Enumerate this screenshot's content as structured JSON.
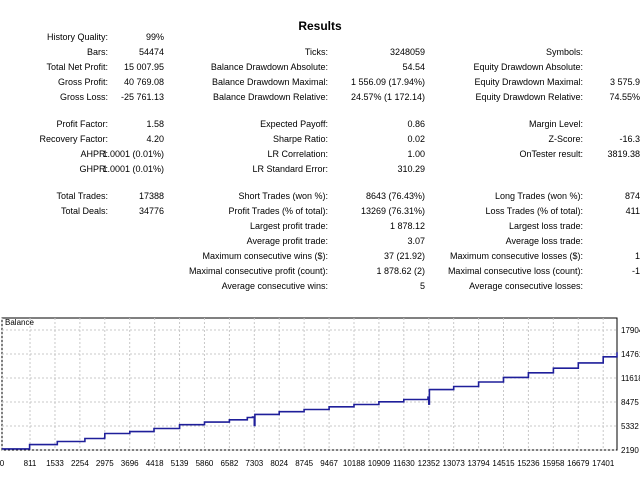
{
  "report": {
    "title": "Results",
    "col1": [
      {
        "label": "History Quality:",
        "value": "99%"
      },
      {
        "label": "Bars:",
        "value": "54474"
      },
      {
        "label": "Total Net Profit:",
        "value": "15 007.95"
      },
      {
        "label": "Gross Profit:",
        "value": "40 769.08"
      },
      {
        "label": "Gross Loss:",
        "value": "-25 761.13"
      },
      {
        "label": "Profit Factor:",
        "value": "1.58"
      },
      {
        "label": "Recovery Factor:",
        "value": "4.20"
      },
      {
        "label": "AHPR:",
        "value": "1.0001 (0.01%)"
      },
      {
        "label": "GHPR:",
        "value": "1.0001 (0.01%)"
      },
      {
        "label": "Total Trades:",
        "value": "17388"
      },
      {
        "label": "Total Deals:",
        "value": "34776"
      }
    ],
    "col2": [
      {
        "label": "Ticks:",
        "value": "3248059"
      },
      {
        "label": "Balance Drawdown Absolute:",
        "value": "54.54"
      },
      {
        "label": "Balance Drawdown Maximal:",
        "value": "1 556.09 (17.94%)"
      },
      {
        "label": "Balance Drawdown Relative:",
        "value": "24.57% (1 172.14)"
      },
      {
        "label": "Expected Payoff:",
        "value": "0.86"
      },
      {
        "label": "Sharpe Ratio:",
        "value": "0.02"
      },
      {
        "label": "LR Correlation:",
        "value": "1.00"
      },
      {
        "label": "LR Standard Error:",
        "value": "310.29"
      },
      {
        "label": "Short Trades (won %):",
        "value": "8643 (76.43%)"
      },
      {
        "label": "Profit Trades (% of total):",
        "value": "13269 (76.31%)"
      },
      {
        "label": "Largest profit trade:",
        "value": "1 878.12"
      },
      {
        "label": "Average profit trade:",
        "value": "3.07"
      },
      {
        "label": "Maximum consecutive wins ($):",
        "value": "37 (21.92)"
      },
      {
        "label": "Maximal consecutive profit (count):",
        "value": "1 878.62 (2)"
      },
      {
        "label": "Average consecutive wins:",
        "value": "5"
      }
    ],
    "col3": [
      {
        "label": "Symbols:",
        "value": ""
      },
      {
        "label": "Equity Drawdown Absolute:",
        "value": ""
      },
      {
        "label": "Equity Drawdown Maximal:",
        "value": "3 575.9"
      },
      {
        "label": "Equity Drawdown Relative:",
        "value": "74.55%"
      },
      {
        "label": "Margin Level:",
        "value": ""
      },
      {
        "label": "Z-Score:",
        "value": "-16.3"
      },
      {
        "label": "OnTester result:",
        "value": "3819.38"
      },
      {
        "label": "Long Trades (won %):",
        "value": "874"
      },
      {
        "label": "Loss Trades (% of total):",
        "value": "411"
      },
      {
        "label": "Largest loss trade:",
        "value": ""
      },
      {
        "label": "Average loss trade:",
        "value": ""
      },
      {
        "label": "Maximum consecutive losses ($):",
        "value": "1"
      },
      {
        "label": "Maximal consecutive loss (count):",
        "value": "-1"
      },
      {
        "label": "Average consecutive losses:",
        "value": ""
      }
    ]
  },
  "colors": {
    "line": "#1f1f9a",
    "grid": "#c8c8c8",
    "frame": "#000000"
  },
  "chart_data": {
    "type": "line",
    "title": "Balance",
    "xlabel": "",
    "ylabel": "",
    "x_ticks": [
      "0",
      "811",
      "1533",
      "2254",
      "2975",
      "3696",
      "4418",
      "5139",
      "5860",
      "6582",
      "7303",
      "8024",
      "8745",
      "9467",
      "10188",
      "10909",
      "11630",
      "12352",
      "13073",
      "13794",
      "14515",
      "15236",
      "15958",
      "16679",
      "17401"
    ],
    "y_ticks": [
      "17904",
      "14761",
      "11618",
      "8475",
      "5332",
      "2190"
    ],
    "xlim": [
      0,
      17800
    ],
    "ylim": [
      2190,
      17904
    ],
    "grid": true,
    "series": [
      {
        "values": [
          [
            0,
            2330
          ],
          [
            800,
            2900
          ],
          [
            1600,
            3300
          ],
          [
            2400,
            3700
          ],
          [
            2970,
            3800
          ],
          [
            2975,
            4350
          ],
          [
            3700,
            4600
          ],
          [
            4400,
            5000
          ],
          [
            5140,
            5500
          ],
          [
            5860,
            5850
          ],
          [
            6582,
            6150
          ],
          [
            7100,
            6450
          ],
          [
            7250,
            6500
          ],
          [
            7303,
            5400
          ],
          [
            7320,
            6850
          ],
          [
            8024,
            7200
          ],
          [
            8745,
            7500
          ],
          [
            9467,
            7850
          ],
          [
            10188,
            8150
          ],
          [
            10909,
            8500
          ],
          [
            11630,
            8800
          ],
          [
            12330,
            9100
          ],
          [
            12352,
            8200
          ],
          [
            12370,
            10100
          ],
          [
            13073,
            10500
          ],
          [
            13794,
            11100
          ],
          [
            14515,
            11700
          ],
          [
            15236,
            12300
          ],
          [
            15958,
            12900
          ],
          [
            16679,
            13600
          ],
          [
            17401,
            14400
          ],
          [
            17800,
            15000
          ]
        ]
      }
    ]
  }
}
